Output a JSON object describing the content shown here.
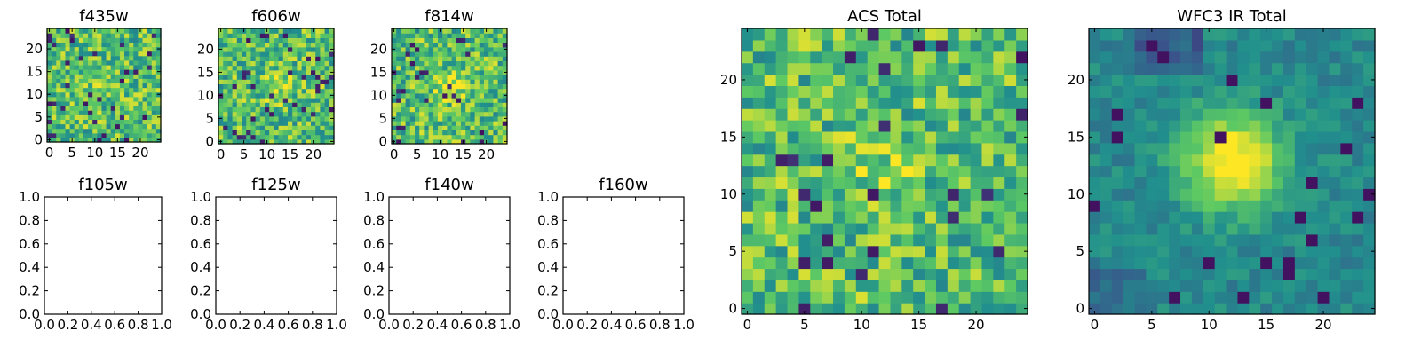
{
  "colormap": [
    "#440154",
    "#3b528b",
    "#21908d",
    "#5dc963",
    "#fde725"
  ],
  "frame_color": "#000000",
  "chart_data": [
    {
      "type": "heatmap",
      "title": "f435w",
      "grid": false,
      "xticks": [
        "0",
        "5",
        "10",
        "15",
        "20"
      ],
      "yticks": [
        "0",
        "5",
        "10",
        "15",
        "20"
      ],
      "xlim": [
        -0.5,
        24.5
      ],
      "ylim": [
        -0.5,
        24.5
      ],
      "grid_size": 25,
      "value_range": [
        0,
        1
      ],
      "pattern": "noise",
      "center_peak": 0.08,
      "seed": 11
    },
    {
      "type": "heatmap",
      "title": "f606w",
      "grid": false,
      "xticks": [
        "0",
        "5",
        "10",
        "15",
        "20"
      ],
      "yticks": [
        "0",
        "5",
        "10",
        "15",
        "20"
      ],
      "xlim": [
        -0.5,
        24.5
      ],
      "ylim": [
        -0.5,
        24.5
      ],
      "grid_size": 25,
      "value_range": [
        0,
        1
      ],
      "pattern": "noise",
      "center_peak": 0.2,
      "seed": 23
    },
    {
      "type": "heatmap",
      "title": "f814w",
      "grid": false,
      "xticks": [
        "0",
        "5",
        "10",
        "15",
        "20"
      ],
      "yticks": [
        "0",
        "5",
        "10",
        "15",
        "20"
      ],
      "xlim": [
        -0.5,
        24.5
      ],
      "ylim": [
        -0.5,
        24.5
      ],
      "grid_size": 25,
      "value_range": [
        0,
        1
      ],
      "pattern": "noise",
      "center_peak": 0.25,
      "seed": 37
    },
    {
      "type": "empty",
      "title": "f105w",
      "xticks": [
        "0.0",
        "0.2",
        "0.4",
        "0.6",
        "0.8",
        "1.0"
      ],
      "yticks": [
        "0.0",
        "0.2",
        "0.4",
        "0.6",
        "0.8",
        "1.0"
      ],
      "xlim": [
        0,
        1
      ],
      "ylim": [
        0,
        1
      ]
    },
    {
      "type": "empty",
      "title": "f125w",
      "xticks": [
        "0.0",
        "0.2",
        "0.4",
        "0.6",
        "0.8",
        "1.0"
      ],
      "yticks": [
        "0.0",
        "0.2",
        "0.4",
        "0.6",
        "0.8",
        "1.0"
      ],
      "xlim": [
        0,
        1
      ],
      "ylim": [
        0,
        1
      ]
    },
    {
      "type": "empty",
      "title": "f140w",
      "xticks": [
        "0.0",
        "0.2",
        "0.4",
        "0.6",
        "0.8",
        "1.0"
      ],
      "yticks": [
        "0.0",
        "0.2",
        "0.4",
        "0.6",
        "0.8",
        "1.0"
      ],
      "xlim": [
        0,
        1
      ],
      "ylim": [
        0,
        1
      ]
    },
    {
      "type": "empty",
      "title": "f160w",
      "xticks": [
        "0.0",
        "0.2",
        "0.4",
        "0.6",
        "0.8",
        "1.0"
      ],
      "yticks": [
        "0.0",
        "0.2",
        "0.4",
        "0.6",
        "0.8",
        "1.0"
      ],
      "xlim": [
        0,
        1
      ],
      "ylim": [
        0,
        1
      ]
    },
    {
      "type": "heatmap",
      "title": "ACS Total",
      "grid": false,
      "xticks": [
        "0",
        "5",
        "10",
        "15",
        "20"
      ],
      "yticks": [
        "0",
        "5",
        "10",
        "15",
        "20"
      ],
      "xlim": [
        -0.5,
        24.5
      ],
      "ylim": [
        -0.5,
        24.5
      ],
      "grid_size": 25,
      "value_range": [
        0,
        1
      ],
      "pattern": "noise",
      "center_peak": 0.15,
      "seed": 53
    },
    {
      "type": "heatmap",
      "title": "WFC3 IR Total",
      "grid": false,
      "xticks": [
        "0",
        "5",
        "10",
        "15",
        "20"
      ],
      "yticks": [
        "0",
        "5",
        "10",
        "15",
        "20"
      ],
      "xlim": [
        -0.5,
        24.5
      ],
      "ylim": [
        -0.5,
        24.5
      ],
      "grid_size": 25,
      "value_range": [
        0,
        1
      ],
      "pattern": "smooth_peak",
      "peak_center": [
        12,
        13
      ],
      "center_peak": 0.6,
      "seed": 71
    }
  ]
}
